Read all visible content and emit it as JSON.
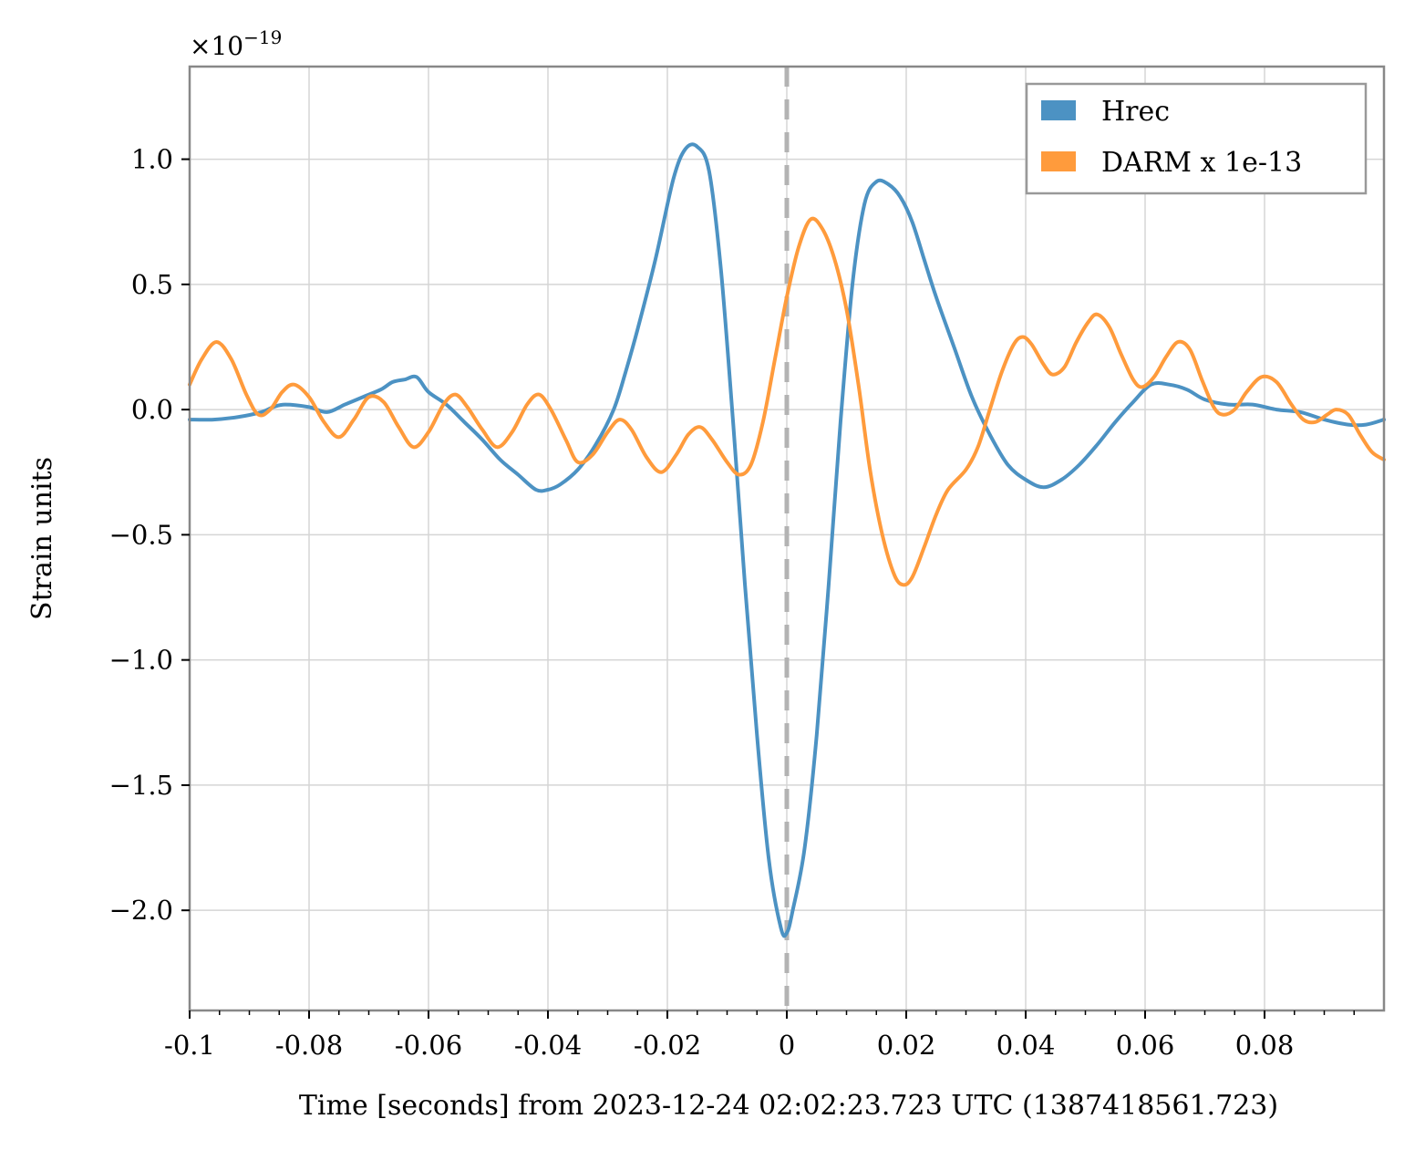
{
  "chart_data": {
    "type": "line",
    "xlabel": "Time [seconds] from 2023-12-24 02:02:23.723 UTC (1387418561.723)",
    "ylabel": "Strain units",
    "y_multiplier": "×10",
    "y_multiplier_exponent": "−19",
    "xlim": [
      -0.1,
      0.1
    ],
    "ylim": [
      -2.4,
      1.37
    ],
    "grid": true,
    "legend_position": "top-right",
    "x_ticks": [
      {
        "value": -0.1,
        "label": "-0.1"
      },
      {
        "value": -0.08,
        "label": "-0.08"
      },
      {
        "value": -0.06,
        "label": "-0.06"
      },
      {
        "value": -0.04,
        "label": "-0.04"
      },
      {
        "value": -0.02,
        "label": "-0.02"
      },
      {
        "value": 0.0,
        "label": "0"
      },
      {
        "value": 0.02,
        "label": "0.02"
      },
      {
        "value": 0.04,
        "label": "0.04"
      },
      {
        "value": 0.06,
        "label": "0.06"
      },
      {
        "value": 0.08,
        "label": "0.08"
      }
    ],
    "y_ticks": [
      {
        "value": 1.0,
        "label": "1.0"
      },
      {
        "value": 0.5,
        "label": "0.5"
      },
      {
        "value": 0.0,
        "label": "0.0"
      },
      {
        "value": -0.5,
        "label": "−0.5"
      },
      {
        "value": -1.0,
        "label": "−1.0"
      },
      {
        "value": -1.5,
        "label": "−1.5"
      },
      {
        "value": -2.0,
        "label": "−2.0"
      }
    ],
    "event_line_x": 0.0,
    "series": [
      {
        "name": "Hrec",
        "color": "#4c92c3",
        "points": [
          [
            -0.1,
            -0.04
          ],
          [
            -0.096,
            -0.04
          ],
          [
            -0.092,
            -0.03
          ],
          [
            -0.088,
            -0.01
          ],
          [
            -0.086,
            0.01
          ],
          [
            -0.084,
            0.02
          ],
          [
            -0.08,
            0.01
          ],
          [
            -0.077,
            -0.01
          ],
          [
            -0.074,
            0.02
          ],
          [
            -0.071,
            0.05
          ],
          [
            -0.068,
            0.08
          ],
          [
            -0.066,
            0.11
          ],
          [
            -0.064,
            0.12
          ],
          [
            -0.062,
            0.13
          ],
          [
            -0.06,
            0.07
          ],
          [
            -0.057,
            0.02
          ],
          [
            -0.054,
            -0.05
          ],
          [
            -0.051,
            -0.12
          ],
          [
            -0.048,
            -0.2
          ],
          [
            -0.045,
            -0.26
          ],
          [
            -0.042,
            -0.32
          ],
          [
            -0.04,
            -0.32
          ],
          [
            -0.038,
            -0.3
          ],
          [
            -0.035,
            -0.24
          ],
          [
            -0.032,
            -0.14
          ],
          [
            -0.029,
            0.0
          ],
          [
            -0.027,
            0.15
          ],
          [
            -0.025,
            0.32
          ],
          [
            -0.022,
            0.6
          ],
          [
            -0.019,
            0.92
          ],
          [
            -0.017,
            1.04
          ],
          [
            -0.015,
            1.05
          ],
          [
            -0.013,
            0.95
          ],
          [
            -0.011,
            0.55
          ],
          [
            -0.009,
            -0.05
          ],
          [
            -0.007,
            -0.7
          ],
          [
            -0.005,
            -1.3
          ],
          [
            -0.003,
            -1.8
          ],
          [
            -0.001,
            -2.07
          ],
          [
            0.0,
            -2.09
          ],
          [
            0.001,
            -2.0
          ],
          [
            0.003,
            -1.75
          ],
          [
            0.005,
            -1.3
          ],
          [
            0.007,
            -0.7
          ],
          [
            0.009,
            -0.05
          ],
          [
            0.011,
            0.5
          ],
          [
            0.013,
            0.82
          ],
          [
            0.015,
            0.91
          ],
          [
            0.017,
            0.9
          ],
          [
            0.019,
            0.85
          ],
          [
            0.021,
            0.75
          ],
          [
            0.023,
            0.6
          ],
          [
            0.025,
            0.45
          ],
          [
            0.028,
            0.25
          ],
          [
            0.031,
            0.05
          ],
          [
            0.034,
            -0.1
          ],
          [
            0.037,
            -0.22
          ],
          [
            0.04,
            -0.28
          ],
          [
            0.043,
            -0.31
          ],
          [
            0.046,
            -0.28
          ],
          [
            0.049,
            -0.22
          ],
          [
            0.052,
            -0.14
          ],
          [
            0.055,
            -0.05
          ],
          [
            0.058,
            0.03
          ],
          [
            0.061,
            0.1
          ],
          [
            0.064,
            0.1
          ],
          [
            0.067,
            0.08
          ],
          [
            0.07,
            0.04
          ],
          [
            0.074,
            0.02
          ],
          [
            0.078,
            0.02
          ],
          [
            0.082,
            0.0
          ],
          [
            0.086,
            -0.01
          ],
          [
            0.09,
            -0.04
          ],
          [
            0.094,
            -0.06
          ],
          [
            0.097,
            -0.06
          ],
          [
            0.1,
            -0.04
          ]
        ]
      },
      {
        "name": "DARM x 1e-13",
        "color": "#ff9b3c",
        "points": [
          [
            -0.1,
            0.1
          ],
          [
            -0.098,
            0.2
          ],
          [
            -0.0955,
            0.27
          ],
          [
            -0.093,
            0.2
          ],
          [
            -0.0905,
            0.06
          ],
          [
            -0.0885,
            -0.02
          ],
          [
            -0.0865,
            0.0
          ],
          [
            -0.0845,
            0.07
          ],
          [
            -0.0825,
            0.1
          ],
          [
            -0.08,
            0.05
          ],
          [
            -0.0775,
            -0.05
          ],
          [
            -0.075,
            -0.11
          ],
          [
            -0.0725,
            -0.04
          ],
          [
            -0.07,
            0.05
          ],
          [
            -0.0675,
            0.03
          ],
          [
            -0.065,
            -0.07
          ],
          [
            -0.0625,
            -0.15
          ],
          [
            -0.06,
            -0.09
          ],
          [
            -0.0575,
            0.02
          ],
          [
            -0.0555,
            0.06
          ],
          [
            -0.0535,
            0.01
          ],
          [
            -0.051,
            -0.08
          ],
          [
            -0.0485,
            -0.15
          ],
          [
            -0.046,
            -0.09
          ],
          [
            -0.0435,
            0.02
          ],
          [
            -0.0415,
            0.06
          ],
          [
            -0.0395,
            0.0
          ],
          [
            -0.037,
            -0.12
          ],
          [
            -0.035,
            -0.21
          ],
          [
            -0.0325,
            -0.18
          ],
          [
            -0.03,
            -0.09
          ],
          [
            -0.028,
            -0.04
          ],
          [
            -0.026,
            -0.08
          ],
          [
            -0.0235,
            -0.19
          ],
          [
            -0.021,
            -0.25
          ],
          [
            -0.0185,
            -0.18
          ],
          [
            -0.0165,
            -0.1
          ],
          [
            -0.0145,
            -0.07
          ],
          [
            -0.0125,
            -0.12
          ],
          [
            -0.01,
            -0.21
          ],
          [
            -0.008,
            -0.26
          ],
          [
            -0.006,
            -0.22
          ],
          [
            -0.004,
            -0.05
          ],
          [
            -0.002,
            0.2
          ],
          [
            0.0,
            0.45
          ],
          [
            0.002,
            0.65
          ],
          [
            0.004,
            0.76
          ],
          [
            0.006,
            0.72
          ],
          [
            0.008,
            0.6
          ],
          [
            0.01,
            0.4
          ],
          [
            0.012,
            0.1
          ],
          [
            0.014,
            -0.25
          ],
          [
            0.016,
            -0.5
          ],
          [
            0.018,
            -0.66
          ],
          [
            0.0195,
            -0.7
          ],
          [
            0.021,
            -0.67
          ],
          [
            0.023,
            -0.55
          ],
          [
            0.025,
            -0.42
          ],
          [
            0.027,
            -0.32
          ],
          [
            0.03,
            -0.24
          ],
          [
            0.032,
            -0.15
          ],
          [
            0.034,
            0.0
          ],
          [
            0.036,
            0.15
          ],
          [
            0.038,
            0.26
          ],
          [
            0.0395,
            0.29
          ],
          [
            0.041,
            0.26
          ],
          [
            0.043,
            0.18
          ],
          [
            0.0445,
            0.14
          ],
          [
            0.0465,
            0.17
          ],
          [
            0.0485,
            0.27
          ],
          [
            0.0505,
            0.35
          ],
          [
            0.052,
            0.38
          ],
          [
            0.054,
            0.33
          ],
          [
            0.056,
            0.22
          ],
          [
            0.058,
            0.12
          ],
          [
            0.0595,
            0.09
          ],
          [
            0.0615,
            0.13
          ],
          [
            0.0635,
            0.21
          ],
          [
            0.0655,
            0.27
          ],
          [
            0.0675,
            0.24
          ],
          [
            0.0695,
            0.12
          ],
          [
            0.0715,
            0.01
          ],
          [
            0.073,
            -0.02
          ],
          [
            0.075,
            0.0
          ],
          [
            0.077,
            0.07
          ],
          [
            0.0795,
            0.13
          ],
          [
            0.082,
            0.11
          ],
          [
            0.0845,
            0.02
          ],
          [
            0.0865,
            -0.04
          ],
          [
            0.0885,
            -0.05
          ],
          [
            0.0905,
            -0.02
          ],
          [
            0.092,
            0.0
          ],
          [
            0.094,
            -0.02
          ],
          [
            0.096,
            -0.1
          ],
          [
            0.098,
            -0.17
          ],
          [
            0.1,
            -0.2
          ]
        ]
      }
    ]
  }
}
